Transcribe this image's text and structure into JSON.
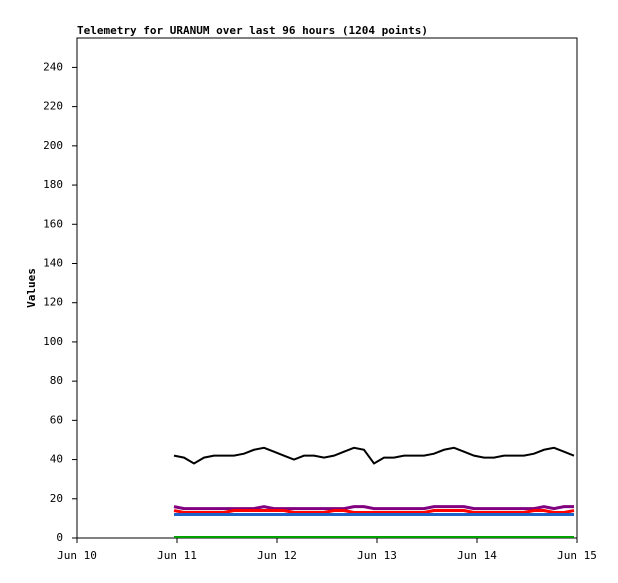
{
  "chart_data": {
    "type": "line",
    "title": "Telemetry for URANUM over last 96 hours (1204 points)",
    "y_label": "Values",
    "x": [
      10.97,
      11.07,
      11.17,
      11.27,
      11.37,
      11.47,
      11.57,
      11.67,
      11.77,
      11.87,
      11.97,
      12.07,
      12.17,
      12.27,
      12.37,
      12.47,
      12.57,
      12.67,
      12.77,
      12.87,
      12.97,
      13.07,
      13.17,
      13.27,
      13.37,
      13.47,
      13.57,
      13.67,
      13.77,
      13.87,
      13.97,
      14.07,
      14.17,
      14.27,
      14.37,
      14.47,
      14.57,
      14.67,
      14.77,
      14.87,
      14.97
    ],
    "series": [
      {
        "color": "#000000",
        "width": 2,
        "values": [
          42,
          41,
          38,
          41,
          42,
          42,
          42,
          43,
          45,
          46,
          44,
          42,
          40,
          42,
          42,
          41,
          42,
          44,
          46,
          45,
          38,
          41,
          41,
          42,
          42,
          42,
          43,
          45,
          46,
          44,
          42,
          41,
          41,
          42,
          42,
          42,
          43,
          45,
          46,
          44,
          42
        ]
      },
      {
        "color": "#800080",
        "width": 3,
        "values": [
          16,
          15,
          15,
          15,
          15,
          15,
          15,
          15,
          15,
          16,
          15,
          15,
          15,
          15,
          15,
          15,
          15,
          15,
          16,
          16,
          15,
          15,
          15,
          15,
          15,
          15,
          16,
          16,
          16,
          16,
          15,
          15,
          15,
          15,
          15,
          15,
          15,
          16,
          15,
          16,
          16
        ]
      },
      {
        "color": "#ff0000",
        "width": 3,
        "values": [
          14,
          13,
          13,
          13,
          13,
          13,
          14,
          14,
          14,
          14,
          14,
          14,
          13,
          13,
          13,
          13,
          14,
          14,
          13,
          13,
          13,
          13,
          13,
          13,
          13,
          13,
          14,
          14,
          14,
          14,
          13,
          13,
          13,
          13,
          13,
          13,
          14,
          14,
          13,
          13,
          14
        ]
      },
      {
        "color": "#1e64c8",
        "width": 3,
        "values": [
          12,
          12,
          12,
          12,
          12,
          12,
          12,
          12,
          12,
          12,
          12,
          12,
          12,
          12,
          12,
          12,
          12,
          12,
          12,
          12,
          12,
          12,
          12,
          12,
          12,
          12,
          12,
          12,
          12,
          12,
          12,
          12,
          12,
          12,
          12,
          12,
          12,
          12,
          12,
          12,
          12
        ]
      },
      {
        "color": "#00a000",
        "width": 2,
        "values": [
          0.5,
          0.5,
          0.5,
          0.5,
          0.5,
          0.5,
          0.5,
          0.5,
          0.5,
          0.5,
          0.5,
          0.5,
          0.5,
          0.5,
          0.5,
          0.5,
          0.5,
          0.5,
          0.5,
          0.5,
          0.5,
          0.5,
          0.5,
          0.5,
          0.5,
          0.5,
          0.5,
          0.5,
          0.5,
          0.5,
          0.5,
          0.5,
          0.5,
          0.5,
          0.5,
          0.5,
          0.5,
          0.5,
          0.5,
          0.5,
          0.5
        ]
      }
    ],
    "xlim": [
      10,
      15
    ],
    "xticks": [
      {
        "value": 10,
        "label": "Jun 10"
      },
      {
        "value": 11,
        "label": "Jun 11"
      },
      {
        "value": 12,
        "label": "Jun 12"
      },
      {
        "value": 13,
        "label": "Jun 13"
      },
      {
        "value": 14,
        "label": "Jun 14"
      },
      {
        "value": 15,
        "label": "Jun 15"
      }
    ],
    "ylim": [
      0,
      255
    ],
    "yticks": [
      0,
      20,
      40,
      60,
      80,
      100,
      120,
      140,
      160,
      180,
      200,
      220,
      240
    ]
  }
}
